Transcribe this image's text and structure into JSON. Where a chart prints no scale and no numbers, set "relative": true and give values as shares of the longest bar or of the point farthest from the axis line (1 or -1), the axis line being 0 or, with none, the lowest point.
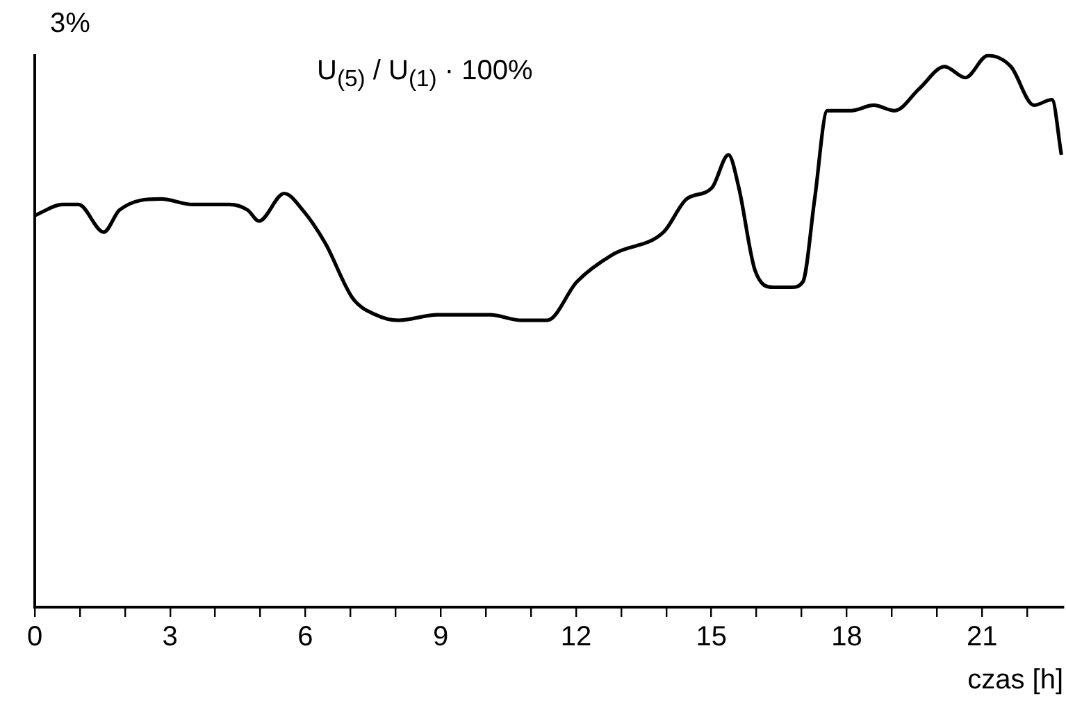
{
  "chart_data": {
    "type": "line",
    "relative": true,
    "xlabel": "czas [h]",
    "annotations": [
      "3%",
      "U$_{(5)}$ / U$_{(1)}$ · 100%"
    ],
    "x": [
      0,
      0.62,
      0.97,
      1.53,
      1.88,
      2.8,
      3.51,
      4.32,
      4.72,
      4.97,
      5.53,
      5.94,
      6.44,
      7.05,
      7.56,
      8.06,
      8.93,
      9.58,
      10.09,
      10.8,
      11.36,
      12.02,
      12.83,
      13.94,
      14.45,
      15.01,
      15.38,
      15.61,
      15.97,
      16.37,
      16.78,
      17.03,
      17.29,
      17.57,
      18.09,
      18.6,
      19.06,
      19.61,
      20.17,
      20.63,
      21.13,
      21.64,
      22.15,
      22.55,
      22.76
    ],
    "series": [
      {
        "color": "#000000",
        "values": [
          0.71,
          0.73,
          0.73,
          0.68,
          0.72,
          0.74,
          0.73,
          0.73,
          0.72,
          0.7,
          0.75,
          0.72,
          0.66,
          0.56,
          0.53,
          0.52,
          0.53,
          0.53,
          0.53,
          0.52,
          0.52,
          0.59,
          0.64,
          0.68,
          0.74,
          0.76,
          0.82,
          0.76,
          0.61,
          0.58,
          0.58,
          0.59,
          0.74,
          0.9,
          0.9,
          0.91,
          0.9,
          0.94,
          0.98,
          0.96,
          1,
          0.98,
          0.91,
          0.92,
          0.82
        ]
      }
    ],
    "xlim": [
      0,
      22.8
    ],
    "xticks": [
      0,
      {
        "value": 1,
        "label": null
      },
      {
        "value": 2,
        "label": null
      },
      3,
      {
        "value": 4,
        "label": null
      },
      {
        "value": 5,
        "label": null
      },
      6,
      {
        "value": 7,
        "label": null
      },
      {
        "value": 8,
        "label": null
      },
      9,
      {
        "value": 10,
        "label": null
      },
      {
        "value": 11,
        "label": null
      },
      12,
      {
        "value": 13,
        "label": null
      },
      {
        "value": 14,
        "label": null
      },
      15,
      {
        "value": 16,
        "label": null
      },
      {
        "value": 17,
        "label": null
      },
      18,
      {
        "value": 19,
        "label": null
      },
      {
        "value": 20,
        "label": null
      },
      21,
      {
        "value": 22,
        "label": null
      }
    ],
    "legend": false,
    "marker": "none",
    "line_style": "solid"
  }
}
